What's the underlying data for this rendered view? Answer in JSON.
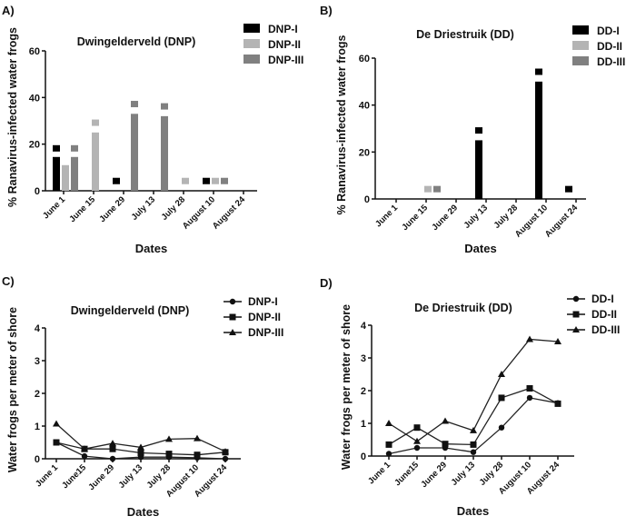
{
  "chart_data": [
    {
      "panel": "A)",
      "type": "bar",
      "title": "Dwingelderveld (DNP)",
      "xlabel": "Dates",
      "ylabel": "% Ranavirus-infected water frogs",
      "ylim": [
        0,
        60
      ],
      "yticks": [
        0,
        20,
        40,
        60
      ],
      "categories": [
        "June 1",
        "June 15",
        "June 29",
        "July 13",
        "July 28",
        "August 10",
        "August 24"
      ],
      "legend_position": "top-right",
      "series": [
        {
          "name": "DNP-I",
          "color": "#000000",
          "values": [
            14.5,
            0,
            0,
            0,
            0,
            0,
            0
          ],
          "markers": [
            18,
            null,
            4,
            null,
            null,
            4,
            null
          ]
        },
        {
          "name": "DNP-II",
          "color": "#b4b4b4",
          "values": [
            11,
            25,
            0,
            0,
            0,
            0,
            0
          ],
          "markers": [
            null,
            29,
            null,
            null,
            4,
            4,
            null
          ]
        },
        {
          "name": "DNP-III",
          "color": "#808080",
          "values": [
            14.5,
            0,
            33,
            32,
            0,
            0,
            0
          ],
          "markers": [
            18,
            null,
            37,
            36,
            null,
            4,
            null
          ]
        }
      ]
    },
    {
      "panel": "B)",
      "type": "bar",
      "title": "De Driestruik (DD)",
      "xlabel": "Dates",
      "ylabel": "% Ranavirus-infected water frogs",
      "ylim": [
        0,
        60
      ],
      "yticks": [
        0,
        20,
        40,
        60
      ],
      "categories": [
        "June 1",
        "June 15",
        "June 29",
        "July 13",
        "July 28",
        "August 10",
        "August 24"
      ],
      "legend_position": "top-right",
      "series": [
        {
          "name": "DD-I",
          "color": "#000000",
          "values": [
            0,
            0,
            0,
            25,
            0,
            50,
            0
          ],
          "markers": [
            null,
            null,
            null,
            29,
            null,
            54,
            4
          ]
        },
        {
          "name": "DD-II",
          "color": "#b4b4b4",
          "values": [
            0,
            0,
            0,
            0,
            0,
            0,
            0
          ],
          "markers": [
            null,
            4,
            null,
            null,
            null,
            null,
            null
          ]
        },
        {
          "name": "DD-III",
          "color": "#808080",
          "values": [
            0,
            0,
            0,
            0,
            0,
            0,
            0
          ],
          "markers": [
            null,
            4,
            null,
            null,
            null,
            null,
            null
          ]
        }
      ]
    },
    {
      "panel": "C)",
      "type": "line",
      "title": "Dwingelderveld (DNP)",
      "xlabel": "Dates",
      "ylabel": "Water frogs per meter of shore",
      "ylim": [
        0,
        4
      ],
      "yticks": [
        0,
        1,
        2,
        3,
        4
      ],
      "categories": [
        "June 1",
        "June15",
        "June 29",
        "July 13",
        "July 28",
        "August 10",
        "August 24"
      ],
      "legend_position": "top-right",
      "series": [
        {
          "name": "DNP-I",
          "marker": "circle",
          "values": [
            0.5,
            0.08,
            0.0,
            0.05,
            0.05,
            0.03,
            0.0
          ]
        },
        {
          "name": "DNP-II",
          "marker": "square",
          "values": [
            0.5,
            0.3,
            0.3,
            0.18,
            0.15,
            0.12,
            0.2
          ]
        },
        {
          "name": "DNP-III",
          "marker": "triangle",
          "values": [
            1.07,
            0.3,
            0.47,
            0.35,
            0.6,
            0.62,
            0.22
          ]
        }
      ]
    },
    {
      "panel": "D)",
      "type": "line",
      "title": "De Driestruik (DD)",
      "xlabel": "Dates",
      "ylabel": "Water frogs per meter of shore",
      "ylim": [
        0,
        4
      ],
      "yticks": [
        0,
        1,
        2,
        3,
        4
      ],
      "categories": [
        "June 1",
        "June15",
        "June 29",
        "July 13",
        "July 28",
        "August 10",
        "August 24"
      ],
      "legend_position": "top-right",
      "series": [
        {
          "name": "DD-I",
          "marker": "circle",
          "values": [
            0.07,
            0.25,
            0.25,
            0.12,
            0.87,
            1.78,
            1.62
          ]
        },
        {
          "name": "DD-II",
          "marker": "square",
          "values": [
            0.35,
            0.87,
            0.37,
            0.35,
            1.78,
            2.07,
            1.6
          ]
        },
        {
          "name": "DD-III",
          "marker": "triangle",
          "values": [
            1.0,
            0.45,
            1.07,
            0.78,
            2.5,
            3.57,
            3.5
          ]
        }
      ]
    }
  ]
}
